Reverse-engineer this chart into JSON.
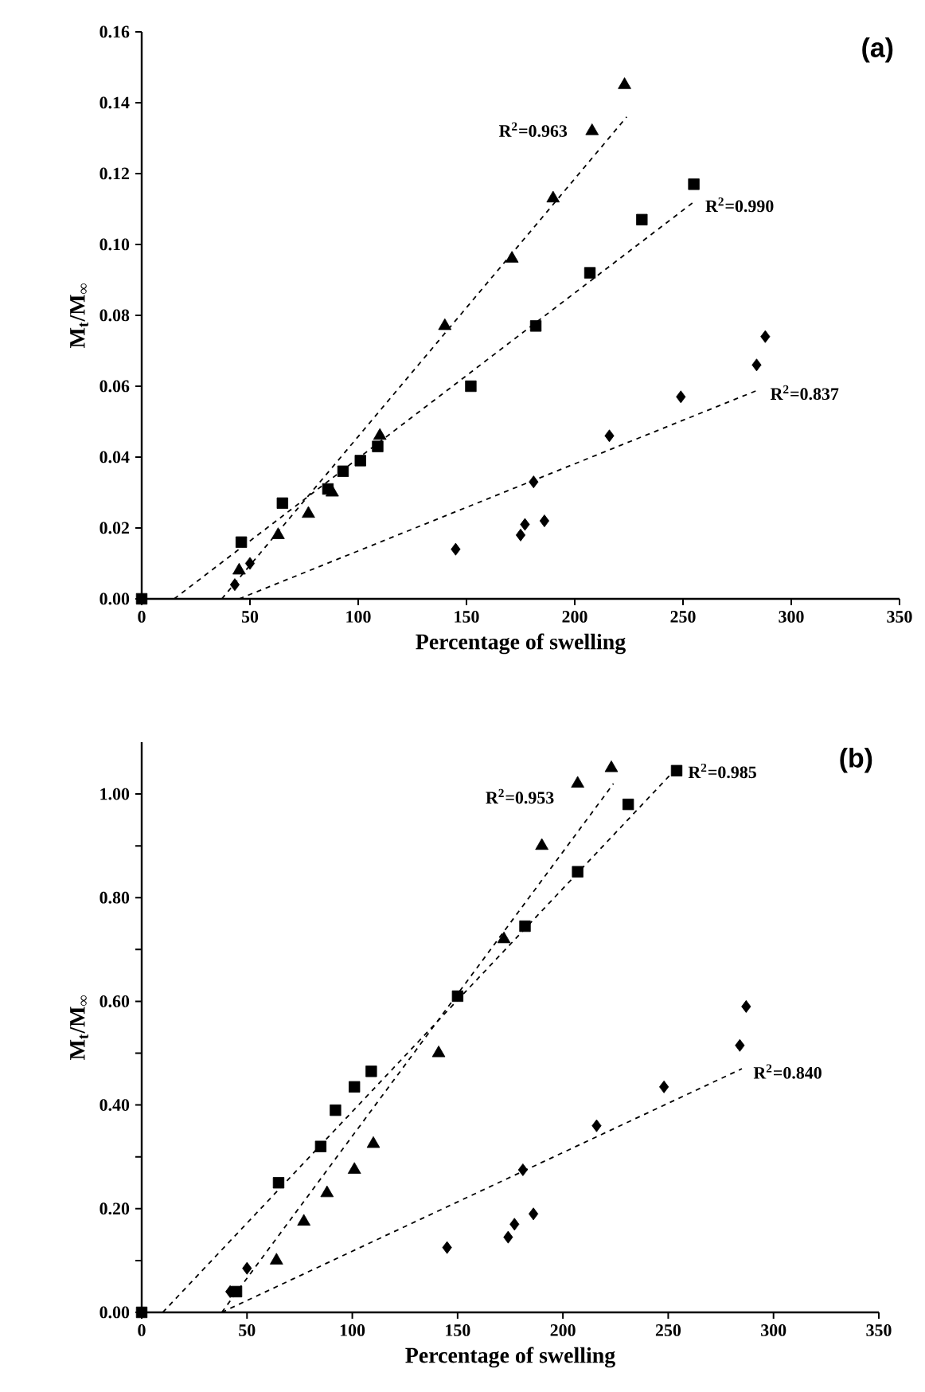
{
  "chart_data": [
    {
      "type": "scatter",
      "title": "(a)",
      "xlabel": "Percentage of swelling",
      "ylabel": "M$_{t}$/M$_{∞}$",
      "xlim": [
        0,
        350
      ],
      "ylim": [
        0,
        0.16
      ],
      "xticks": [
        0,
        50,
        100,
        150,
        200,
        250,
        300,
        350
      ],
      "yticks": [
        {
          "value": 0,
          "label": "0.00"
        },
        {
          "value": 0.02,
          "label": "0.02"
        },
        {
          "value": 0.04,
          "label": "0.04"
        },
        {
          "value": 0.06,
          "label": "0.06"
        },
        {
          "value": 0.08,
          "label": "0.08"
        },
        {
          "value": 0.1,
          "label": "0.10"
        },
        {
          "value": 0.12,
          "label": "0.12"
        },
        {
          "value": 0.14,
          "label": "0.14"
        },
        {
          "value": 0.16,
          "label": "0.16"
        }
      ],
      "grid": false,
      "series": [
        {
          "color": "#000000",
          "marker": "triangle",
          "x": [
            45,
            63,
            77,
            88,
            110,
            140,
            171,
            190,
            208,
            223
          ],
          "values": [
            0.008,
            0.018,
            0.024,
            0.03,
            0.046,
            0.077,
            0.096,
            0.113,
            0.132,
            0.145
          ]
        },
        {
          "color": "#000000",
          "marker": "square",
          "x": [
            0,
            46,
            65,
            86,
            93,
            101,
            109,
            152,
            182,
            207,
            231,
            255
          ],
          "values": [
            0,
            0.016,
            0.027,
            0.031,
            0.036,
            0.039,
            0.043,
            0.06,
            0.077,
            0.092,
            0.107,
            0.117
          ]
        },
        {
          "color": "#000000",
          "marker": "diamond",
          "x": [
            43,
            50,
            145,
            175,
            177,
            181,
            186,
            216,
            249,
            284,
            288
          ],
          "values": [
            0.004,
            0.01,
            0.014,
            0.018,
            0.021,
            0.033,
            0.022,
            0.046,
            0.057,
            0.066,
            0.074
          ]
        },
        {
          "type": "line",
          "color": "#000000",
          "marker": "none",
          "line_style": "dashed",
          "x": [
            37,
            224
          ],
          "values": [
            0,
            0.136
          ]
        },
        {
          "type": "line",
          "color": "#000000",
          "marker": "none",
          "line_style": "dashed",
          "x": [
            15,
            255
          ],
          "values": [
            0,
            0.112
          ]
        },
        {
          "type": "line",
          "color": "#000000",
          "marker": "none",
          "line_style": "dashed",
          "x": [
            45,
            285
          ],
          "values": [
            0,
            0.059
          ]
        }
      ],
      "annotations": [
        "R$^{2}$=0.963",
        "R$^{2}$=0.990",
        "R$^{2}$=0.837"
      ]
    },
    {
      "type": "scatter",
      "title": "(b)",
      "xlabel": "Percentage of swelling",
      "ylabel": "M$_{t}$/M$_{∞}$",
      "xlim": [
        0,
        350
      ],
      "ylim": [
        0,
        1.1
      ],
      "xticks": [
        0,
        50,
        100,
        150,
        200,
        250,
        300,
        350
      ],
      "yticks": [
        {
          "value": 0,
          "label": "0.00"
        },
        {
          "value": 0.1,
          "label": null
        },
        {
          "value": 0.2,
          "label": "0.20"
        },
        {
          "value": 0.3,
          "label": null
        },
        {
          "value": 0.4,
          "label": "0.40"
        },
        {
          "value": 0.5,
          "label": null
        },
        {
          "value": 0.6,
          "label": "0.60"
        },
        {
          "value": 0.7,
          "label": null
        },
        {
          "value": 0.8,
          "label": "0.80"
        },
        {
          "value": 0.9,
          "label": null
        },
        {
          "value": 1.0,
          "label": "1.00"
        }
      ],
      "grid": false,
      "series": [
        {
          "color": "#000000",
          "marker": "square",
          "x": [
            0,
            45,
            65,
            85,
            92,
            101,
            109,
            150,
            182,
            207,
            231,
            254
          ],
          "values": [
            0,
            0.04,
            0.25,
            0.32,
            0.39,
            0.435,
            0.465,
            0.61,
            0.745,
            0.85,
            0.98,
            1.045
          ]
        },
        {
          "color": "#000000",
          "marker": "triangle",
          "x": [
            64,
            77,
            88,
            101,
            110,
            141,
            172,
            190,
            207,
            223
          ],
          "values": [
            0.1,
            0.175,
            0.23,
            0.275,
            0.325,
            0.5,
            0.72,
            0.9,
            1.02,
            1.05
          ]
        },
        {
          "color": "#000000",
          "marker": "diamond",
          "x": [
            42,
            50,
            145,
            174,
            177,
            181,
            186,
            216,
            248,
            284,
            287
          ],
          "values": [
            0.04,
            0.085,
            0.125,
            0.145,
            0.17,
            0.275,
            0.19,
            0.36,
            0.435,
            0.515,
            0.59
          ]
        },
        {
          "type": "line",
          "color": "#000000",
          "marker": "none",
          "line_style": "dashed",
          "x": [
            38,
            224
          ],
          "values": [
            0,
            1.02
          ]
        },
        {
          "type": "line",
          "color": "#000000",
          "marker": "none",
          "line_style": "dashed",
          "x": [
            10,
            254
          ],
          "values": [
            0,
            1.05
          ]
        },
        {
          "type": "line",
          "color": "#000000",
          "marker": "none",
          "line_style": "dashed",
          "x": [
            38,
            285
          ],
          "values": [
            0,
            0.47
          ]
        }
      ],
      "annotations": [
        "R$^{2}$=0.953",
        "R$^{2}$=0.985",
        "R$^{2}$=0.840"
      ]
    }
  ]
}
